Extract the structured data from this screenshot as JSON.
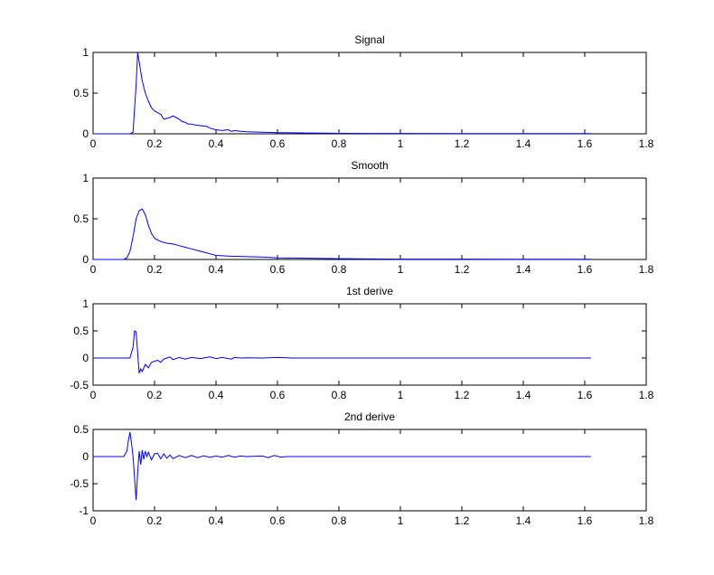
{
  "chart_data": [
    {
      "type": "line",
      "title": "Signal",
      "xlim": [
        0,
        1.8
      ],
      "ylim": [
        0,
        1
      ],
      "xticks": [
        0,
        0.2,
        0.4,
        0.6,
        0.8,
        1,
        1.2,
        1.4,
        1.6,
        1.8
      ],
      "xtick_labels": [
        "0",
        "0.2",
        "0.4",
        "0.6",
        "0.8",
        "1",
        "1.2",
        "1.4",
        "1.6",
        "1.8"
      ],
      "yticks": [
        0,
        0.5,
        1
      ],
      "ytick_labels": [
        "0",
        "0.5",
        "1"
      ],
      "grid": false,
      "color": "#0000ff",
      "series": [
        {
          "x": [
            0,
            0.12,
            0.13,
            0.14,
            0.145,
            0.15,
            0.16,
            0.17,
            0.18,
            0.19,
            0.2,
            0.21,
            0.22,
            0.23,
            0.24,
            0.25,
            0.26,
            0.27,
            0.28,
            0.29,
            0.3,
            0.31,
            0.32,
            0.33,
            0.35,
            0.37,
            0.38,
            0.4,
            0.42,
            0.44,
            0.45,
            0.46,
            0.48,
            0.5,
            0.55,
            0.6,
            0.65,
            0.7,
            0.75,
            0.8,
            0.9,
            1.0,
            1.2,
            1.4,
            1.62
          ],
          "y": [
            0,
            0,
            0.02,
            0.6,
            1.0,
            0.88,
            0.65,
            0.5,
            0.4,
            0.32,
            0.28,
            0.26,
            0.24,
            0.18,
            0.19,
            0.2,
            0.22,
            0.2,
            0.18,
            0.15,
            0.14,
            0.12,
            0.12,
            0.11,
            0.1,
            0.09,
            0.07,
            0.05,
            0.04,
            0.05,
            0.03,
            0.04,
            0.03,
            0.025,
            0.02,
            0.015,
            0.012,
            0.01,
            0.008,
            0.006,
            0.005,
            0.004,
            0.003,
            0.002,
            0.002
          ]
        }
      ]
    },
    {
      "type": "line",
      "title": "Smooth",
      "xlim": [
        0,
        1.8
      ],
      "ylim": [
        0,
        1
      ],
      "xticks": [
        0,
        0.2,
        0.4,
        0.6,
        0.8,
        1,
        1.2,
        1.4,
        1.6,
        1.8
      ],
      "xtick_labels": [
        "0",
        "0.2",
        "0.4",
        "0.6",
        "0.8",
        "1",
        "1.2",
        "1.4",
        "1.6",
        "1.8"
      ],
      "yticks": [
        0,
        0.5,
        1
      ],
      "ytick_labels": [
        "0",
        "0.5",
        "1"
      ],
      "grid": false,
      "color": "#0000ff",
      "series": [
        {
          "x": [
            0,
            0.1,
            0.11,
            0.12,
            0.13,
            0.14,
            0.15,
            0.16,
            0.17,
            0.18,
            0.19,
            0.2,
            0.22,
            0.24,
            0.26,
            0.28,
            0.3,
            0.32,
            0.34,
            0.36,
            0.38,
            0.4,
            0.45,
            0.5,
            0.55,
            0.6,
            0.7,
            0.8,
            1.0,
            1.2,
            1.4,
            1.62
          ],
          "y": [
            0,
            0,
            0.02,
            0.1,
            0.28,
            0.5,
            0.6,
            0.62,
            0.55,
            0.42,
            0.32,
            0.26,
            0.22,
            0.2,
            0.19,
            0.17,
            0.15,
            0.13,
            0.11,
            0.09,
            0.07,
            0.05,
            0.04,
            0.035,
            0.03,
            0.02,
            0.015,
            0.01,
            0.005,
            0.004,
            0.003,
            0.002
          ]
        }
      ]
    },
    {
      "type": "line",
      "title": "1st derive",
      "xlim": [
        0,
        1.8
      ],
      "ylim": [
        -0.5,
        1
      ],
      "xticks": [
        0,
        0.2,
        0.4,
        0.6,
        0.8,
        1,
        1.2,
        1.4,
        1.6,
        1.8
      ],
      "xtick_labels": [
        "0",
        "0.2",
        "0.4",
        "0.6",
        "0.8",
        "1",
        "1.2",
        "1.4",
        "1.6",
        "1.8"
      ],
      "yticks": [
        -0.5,
        0,
        0.5,
        1
      ],
      "ytick_labels": [
        "-0.5",
        "0",
        "0.5",
        "1"
      ],
      "grid": false,
      "color": "#0000ff",
      "series": [
        {
          "x": [
            0,
            0.12,
            0.13,
            0.135,
            0.14,
            0.145,
            0.15,
            0.155,
            0.16,
            0.17,
            0.18,
            0.19,
            0.2,
            0.21,
            0.22,
            0.23,
            0.24,
            0.25,
            0.26,
            0.28,
            0.3,
            0.32,
            0.35,
            0.38,
            0.4,
            0.42,
            0.45,
            0.46,
            0.48,
            0.5,
            0.55,
            0.6,
            0.65,
            0.7,
            0.8,
            1.0,
            1.2,
            1.4,
            1.62
          ],
          "y": [
            0,
            0,
            0.2,
            0.5,
            0.48,
            0.1,
            -0.28,
            -0.2,
            -0.25,
            -0.12,
            -0.18,
            -0.08,
            -0.06,
            -0.04,
            -0.08,
            -0.02,
            0.0,
            0.02,
            -0.03,
            0.01,
            -0.02,
            0.01,
            -0.01,
            0.02,
            -0.01,
            0.01,
            -0.02,
            0.01,
            0.0,
            0.005,
            0.0,
            0.01,
            0.0,
            0.0,
            0.0,
            0.0,
            0.0,
            0.0,
            0.0
          ]
        }
      ]
    },
    {
      "type": "line",
      "title": "2nd derive",
      "xlim": [
        0,
        1.8
      ],
      "ylim": [
        -1,
        0.5
      ],
      "xticks": [
        0,
        0.2,
        0.4,
        0.6,
        0.8,
        1,
        1.2,
        1.4,
        1.6,
        1.8
      ],
      "xtick_labels": [
        "0",
        "0.2",
        "0.4",
        "0.6",
        "0.8",
        "1",
        "1.2",
        "1.4",
        "1.6",
        "1.8"
      ],
      "yticks": [
        -1,
        -0.5,
        0,
        0.5
      ],
      "ytick_labels": [
        "-1",
        "-0.5",
        "0",
        "0.5"
      ],
      "grid": false,
      "color": "#0000ff",
      "series": [
        {
          "x": [
            0,
            0.1,
            0.11,
            0.115,
            0.12,
            0.125,
            0.13,
            0.135,
            0.14,
            0.145,
            0.15,
            0.155,
            0.16,
            0.165,
            0.17,
            0.175,
            0.18,
            0.19,
            0.2,
            0.21,
            0.22,
            0.23,
            0.24,
            0.25,
            0.26,
            0.28,
            0.3,
            0.32,
            0.34,
            0.36,
            0.38,
            0.4,
            0.42,
            0.44,
            0.46,
            0.48,
            0.5,
            0.55,
            0.57,
            0.59,
            0.61,
            0.63,
            0.7,
            1.0,
            1.2,
            1.4,
            1.62
          ],
          "y": [
            0,
            0,
            0.1,
            0.3,
            0.45,
            0.25,
            0.0,
            -0.4,
            -0.8,
            -0.3,
            0.1,
            -0.15,
            0.12,
            -0.05,
            0.1,
            0.0,
            0.08,
            -0.06,
            0.05,
            0.06,
            -0.04,
            0.05,
            -0.03,
            0.03,
            -0.04,
            0.02,
            -0.02,
            0.02,
            -0.02,
            0.015,
            -0.015,
            0.01,
            -0.01,
            0.02,
            -0.01,
            0.01,
            0.0,
            0.01,
            -0.02,
            0.02,
            -0.01,
            0.0,
            0.0,
            0.0,
            0.0,
            0.0,
            0.0
          ]
        }
      ]
    }
  ]
}
